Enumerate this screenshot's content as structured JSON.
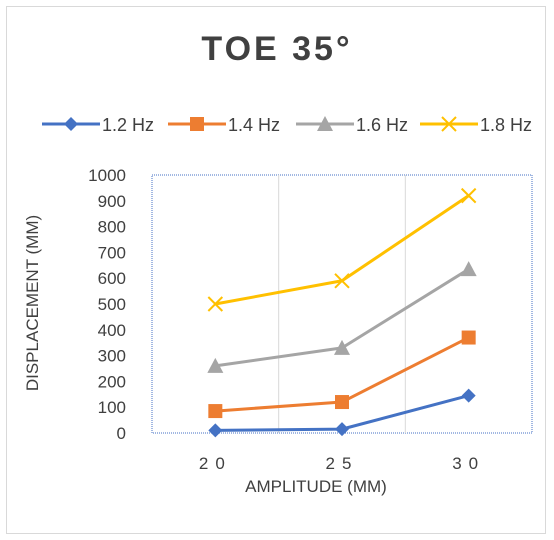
{
  "chart_data": {
    "type": "line",
    "title": "TOE 35°",
    "xlabel": "AMPLITUDE (MM)",
    "ylabel": "DISPLACEMENT (MM)",
    "categories": [
      "20",
      "25",
      "30"
    ],
    "ylim": [
      0,
      1000
    ],
    "yticks": [
      0,
      100,
      200,
      300,
      400,
      500,
      600,
      700,
      800,
      900,
      1000
    ],
    "grid": "vertical",
    "legend": "top",
    "series": [
      {
        "name": "1.2 Hz",
        "values": [
          10,
          15,
          145
        ],
        "color": "#4472C4",
        "marker": "diamond"
      },
      {
        "name": "1.4 Hz",
        "values": [
          85,
          120,
          370
        ],
        "color": "#ED7D31",
        "marker": "square"
      },
      {
        "name": "1.6 Hz",
        "values": [
          260,
          330,
          635
        ],
        "color": "#A5A5A5",
        "marker": "triangle"
      },
      {
        "name": "1.8 Hz",
        "values": [
          500,
          590,
          920
        ],
        "color": "#FFC000",
        "marker": "x"
      }
    ]
  }
}
